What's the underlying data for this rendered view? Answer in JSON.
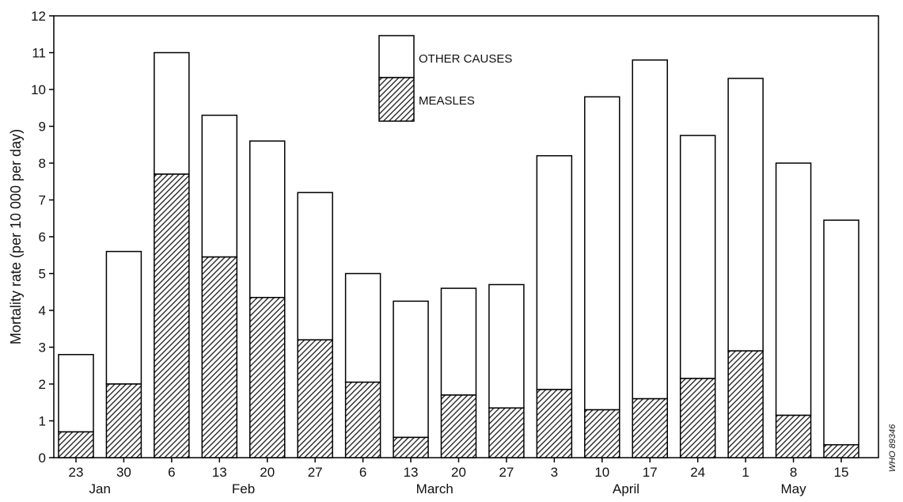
{
  "chart_data": {
    "type": "bar",
    "stacked": true,
    "categories": [
      "23",
      "30",
      "6",
      "13",
      "20",
      "27",
      "6",
      "13",
      "20",
      "27",
      "3",
      "10",
      "17",
      "24",
      "1",
      "8",
      "15"
    ],
    "month_labels": [
      {
        "label": "Jan",
        "under": [
          "23",
          "30"
        ]
      },
      {
        "label": "Feb",
        "under": [
          "6",
          "13",
          "20",
          "27"
        ]
      },
      {
        "label": "March",
        "under": [
          "6",
          "13",
          "20",
          "27"
        ]
      },
      {
        "label": "April",
        "under": [
          "3",
          "10",
          "17",
          "24"
        ]
      },
      {
        "label": "May",
        "under": [
          "1",
          "8",
          "15"
        ]
      }
    ],
    "series": [
      {
        "name": "MEASLES",
        "values": [
          0.7,
          2.0,
          7.7,
          5.45,
          4.35,
          3.2,
          2.05,
          0.55,
          1.7,
          1.35,
          1.85,
          1.3,
          1.6,
          2.15,
          2.9,
          1.15,
          0.35
        ]
      },
      {
        "name": "OTHER CAUSES",
        "values": [
          2.1,
          3.6,
          3.3,
          3.85,
          4.25,
          4.0,
          2.95,
          3.7,
          2.9,
          3.35,
          6.35,
          8.5,
          9.2,
          6.6,
          7.4,
          6.85,
          6.1
        ]
      }
    ],
    "totals": [
      2.8,
      5.6,
      11.0,
      9.3,
      8.6,
      7.2,
      5.0,
      4.25,
      4.6,
      4.7,
      8.2,
      9.8,
      10.8,
      8.75,
      10.3,
      8.0,
      6.45
    ],
    "ylabel": "Mortality rate (per 10 000 per day)",
    "xlabel": "",
    "ylim": [
      0,
      12
    ],
    "yticks": [
      0,
      1,
      2,
      3,
      4,
      5,
      6,
      7,
      8,
      9,
      10,
      11,
      12
    ],
    "legend": [
      "OTHER CAUSES",
      "MEASLES"
    ],
    "legend_position": "top-center",
    "grid": false,
    "colors": {
      "measles_hatch": "#222222",
      "other_fill": "#ffffff",
      "outline": "#000000"
    },
    "source_code": "WHO 89346"
  }
}
